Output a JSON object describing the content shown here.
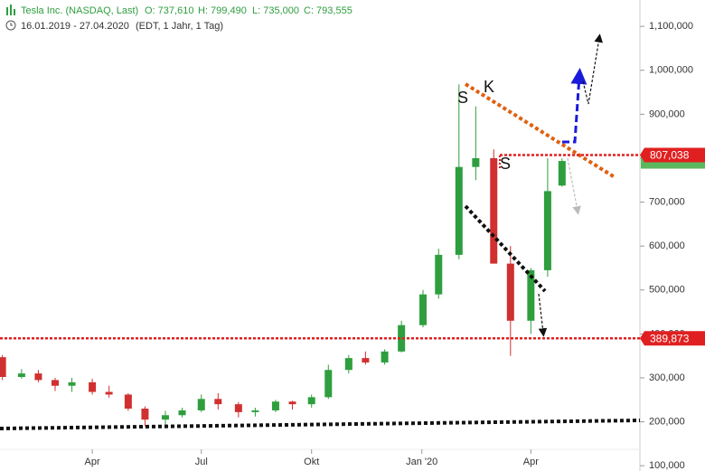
{
  "header": {
    "title": "Tesla Inc. (NASDAQ, Last)",
    "ohlc": [
      "O: 737,610",
      "H: 799,490",
      "L: 735,000",
      "C: 793,555"
    ],
    "range": "16.01.2019 - 27.04.2020",
    "info": "(EDT, 1 Jahr, 1 Tag)"
  },
  "chart_data": {
    "type": "candlestick",
    "x": [
      "2019-01-16",
      "2019-02-01",
      "2019-02-15",
      "2019-03-01",
      "2019-03-15",
      "2019-04-01",
      "2019-04-15",
      "2019-05-01",
      "2019-05-15",
      "2019-06-01",
      "2019-06-15",
      "2019-07-01",
      "2019-07-15",
      "2019-08-01",
      "2019-08-15",
      "2019-09-01",
      "2019-09-15",
      "2019-10-01",
      "2019-10-15",
      "2019-11-01",
      "2019-11-15",
      "2019-12-01",
      "2019-12-15",
      "2020-01-02",
      "2020-01-15",
      "2020-02-01",
      "2020-02-15",
      "2020-03-01",
      "2020-03-15",
      "2020-04-01",
      "2020-04-15",
      "2020-04-27"
    ],
    "open": [
      347000,
      302000,
      310000,
      295000,
      282000,
      290000,
      268000,
      262000,
      230000,
      205000,
      215000,
      226000,
      252000,
      240000,
      222000,
      226000,
      246000,
      240000,
      256000,
      318000,
      345000,
      335000,
      360000,
      420000,
      490000,
      580000,
      780000,
      800000,
      560000,
      430000,
      545000,
      737610
    ],
    "high": [
      352000,
      320000,
      318000,
      300000,
      300000,
      298000,
      282000,
      265000,
      235000,
      225000,
      232000,
      262000,
      265000,
      245000,
      232000,
      250000,
      248000,
      262000,
      330000,
      352000,
      360000,
      365000,
      430000,
      500000,
      594000,
      968000,
      918000,
      820000,
      600000,
      550000,
      800000,
      799490
    ],
    "low": [
      295000,
      298000,
      290000,
      270000,
      268000,
      262000,
      255000,
      225000,
      190000,
      185000,
      210000,
      222000,
      228000,
      210000,
      212000,
      222000,
      228000,
      232000,
      252000,
      310000,
      330000,
      330000,
      358000,
      415000,
      480000,
      570000,
      750000,
      560000,
      350000,
      400000,
      530000,
      735000
    ],
    "close": [
      302000,
      310000,
      295000,
      282000,
      290000,
      268000,
      262000,
      230000,
      205000,
      215000,
      226000,
      252000,
      240000,
      222000,
      226000,
      246000,
      240000,
      256000,
      318000,
      345000,
      335000,
      360000,
      420000,
      490000,
      580000,
      780000,
      800000,
      560000,
      430000,
      545000,
      725000,
      793555
    ],
    "up_color": "#2e9e3e",
    "down_color": "#d03030",
    "xlim": [
      "2019-01-14",
      "2020-07-01"
    ],
    "xticks": [
      {
        "value": "2019-04-01",
        "label": "Apr"
      },
      {
        "value": "2019-07-01",
        "label": "Jul"
      },
      {
        "value": "2019-10-01",
        "label": "Okt"
      },
      {
        "value": "2020-01-01",
        "label": "Jan '20"
      },
      {
        "value": "2020-04-01",
        "label": "Apr"
      }
    ],
    "ylim": [
      88000,
      1160000
    ],
    "yticks": [
      {
        "value": 100000,
        "label": "100,000"
      },
      {
        "value": 200000,
        "label": "200,000"
      },
      {
        "value": 300000,
        "label": "300,000"
      },
      {
        "value": 400000,
        "label": "400,000"
      },
      {
        "value": 500000,
        "label": "500,000"
      },
      {
        "value": 600000,
        "label": "600,000"
      },
      {
        "value": 700000,
        "label": "700,000"
      },
      {
        "value": 800000,
        "label": "800,000"
      },
      {
        "value": 900000,
        "label": "900,000"
      },
      {
        "value": 1000000,
        "label": "1,000,000"
      },
      {
        "value": 1100000,
        "label": "1,100,000"
      }
    ],
    "hlines": [
      {
        "value": 807038,
        "label": "807,038"
      },
      {
        "value": 389873,
        "label": "389,873"
      }
    ],
    "hline_color": "#e02020",
    "annotations": [
      "S",
      "K",
      "S"
    ]
  }
}
